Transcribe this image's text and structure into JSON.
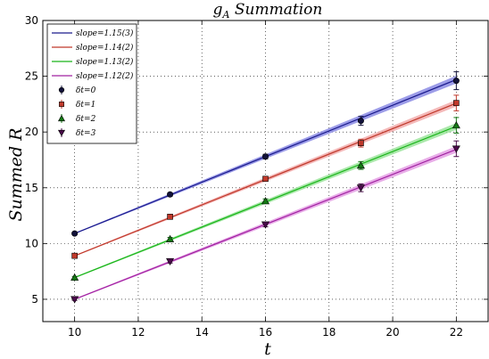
{
  "chart_data": {
    "type": "line",
    "title": "g_A Summation",
    "title_parts": {
      "base": "g",
      "sub": "A",
      "rest": " Summation"
    },
    "xlabel": "t",
    "ylabel": "Summed R",
    "xlim": [
      9,
      23
    ],
    "ylim": [
      3,
      30
    ],
    "xticks": [
      10,
      12,
      14,
      16,
      18,
      20,
      22
    ],
    "yticks": [
      5,
      10,
      15,
      20,
      25,
      30
    ],
    "grid": true,
    "legend_position": "top-left",
    "fit_range": [
      10,
      22
    ],
    "series": [
      {
        "fit_label": "slope=1.15(3)",
        "point_label": "δt=0",
        "color": "#1a1a8c",
        "band_color": "#7b7be0",
        "marker": "circle",
        "marker_color": "#12123a",
        "fit_start": 10.9,
        "slope": 1.15,
        "band_halfwidth_end": 0.35,
        "x": [
          10,
          13,
          16,
          19,
          22
        ],
        "y": [
          10.9,
          14.4,
          17.8,
          21.0,
          24.6
        ],
        "err": [
          0.1,
          0.15,
          0.2,
          0.4,
          0.8
        ]
      },
      {
        "fit_label": "slope=1.14(2)",
        "point_label": "δt=1",
        "color": "#c0392b",
        "band_color": "#f0a0a0",
        "marker": "square",
        "marker_color": "#c0392b",
        "fit_start": 8.9,
        "slope": 1.14,
        "band_halfwidth_end": 0.3,
        "x": [
          10,
          13,
          16,
          19,
          22
        ],
        "y": [
          8.9,
          12.4,
          15.8,
          19.0,
          22.6
        ],
        "err": [
          0.1,
          0.15,
          0.2,
          0.35,
          0.7
        ]
      },
      {
        "fit_label": "slope=1.13(2)",
        "point_label": "δt=2",
        "color": "#19b519",
        "band_color": "#8ee08e",
        "marker": "triangle-up",
        "marker_color": "#147814",
        "fit_start": 6.95,
        "slope": 1.13,
        "band_halfwidth_end": 0.3,
        "x": [
          10,
          13,
          16,
          19,
          22
        ],
        "y": [
          6.95,
          10.4,
          13.8,
          17.0,
          20.6
        ],
        "err": [
          0.1,
          0.15,
          0.2,
          0.35,
          0.7
        ]
      },
      {
        "fit_label": "slope=1.12(2)",
        "point_label": "δt=3",
        "color": "#a020a0",
        "band_color": "#e090e0",
        "marker": "triangle-down",
        "marker_color": "#4a0a4a",
        "fit_start": 5.0,
        "slope": 1.12,
        "band_halfwidth_end": 0.3,
        "x": [
          10,
          13,
          16,
          19,
          22
        ],
        "y": [
          5.0,
          8.4,
          11.7,
          15.0,
          18.5
        ],
        "err": [
          0.1,
          0.15,
          0.2,
          0.35,
          0.7
        ]
      }
    ]
  }
}
